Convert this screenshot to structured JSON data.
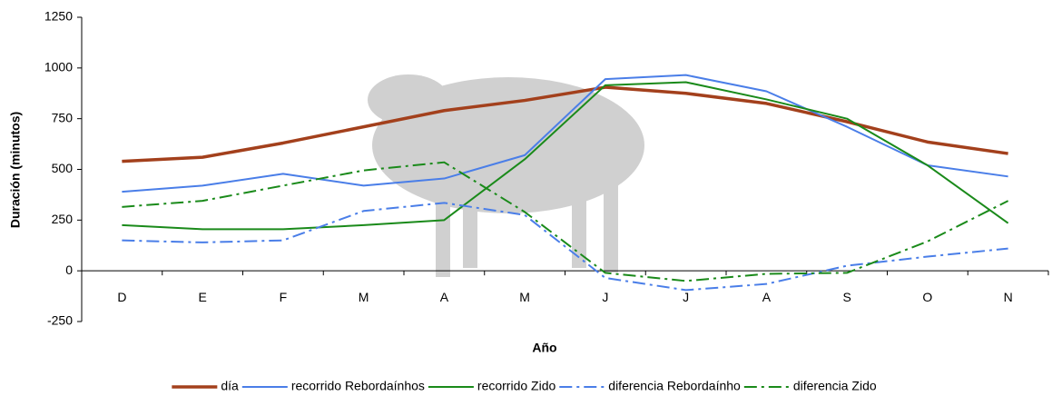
{
  "chart_data": {
    "type": "line",
    "x_label": "Año",
    "y_label": "Duración (minutos)",
    "categories": [
      "D",
      "E",
      "F",
      "M",
      "A",
      "M",
      "J",
      "J",
      "A",
      "S",
      "O",
      "N"
    ],
    "ylim": [
      -250,
      1250
    ],
    "yticks": [
      -250,
      0,
      250,
      500,
      750,
      1000,
      1250
    ],
    "grid": false,
    "legend": "bottom",
    "series": [
      {
        "name": "día",
        "color": "#a3401c",
        "width": 3.5,
        "line_style": "solid",
        "values": [
          540,
          560,
          630,
          710,
          790,
          840,
          905,
          875,
          825,
          735,
          635,
          578
        ]
      },
      {
        "name": "recorrido Rebordaínhos",
        "color": "#4a7ee8",
        "width": 2,
        "line_style": "solid",
        "values": [
          390,
          420,
          478,
          420,
          455,
          570,
          945,
          965,
          885,
          710,
          520,
          465
        ]
      },
      {
        "name": "recorrido Zido",
        "color": "#1a8a1a",
        "width": 2,
        "line_style": "solid",
        "values": [
          225,
          205,
          205,
          225,
          250,
          550,
          915,
          930,
          845,
          750,
          520,
          235
        ]
      },
      {
        "name": "diferencia  Rebordaínho",
        "color": "#4a7ee8",
        "width": 2,
        "line_style": "dashdot",
        "values": [
          150,
          140,
          150,
          295,
          335,
          275,
          -35,
          -95,
          -65,
          25,
          70,
          110
        ]
      },
      {
        "name": "diferencia  Zido",
        "color": "#1a8a1a",
        "width": 2,
        "line_style": "dashdot",
        "values": [
          315,
          345,
          420,
          495,
          535,
          290,
          -10,
          -50,
          -15,
          -10,
          145,
          345
        ]
      }
    ]
  }
}
